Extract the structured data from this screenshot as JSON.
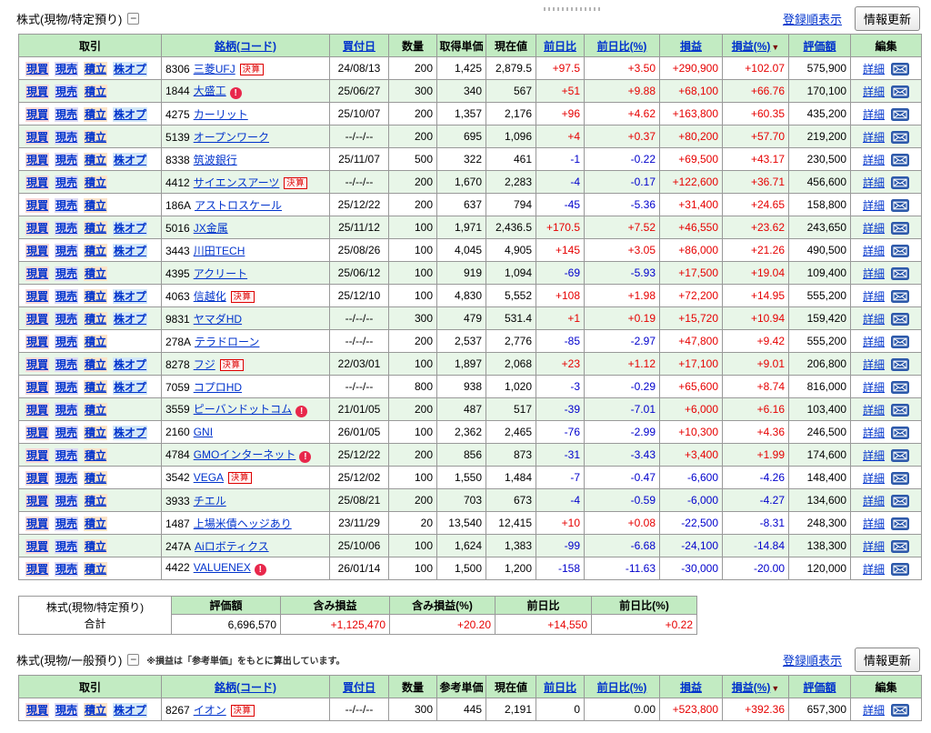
{
  "colors": {
    "positive": "#e60000",
    "negative": "#0000cc",
    "link": "#0033cc",
    "header_bg": "#c2ebc2",
    "stripe": "#e8f6e8",
    "border": "#999999",
    "outer": "#777777",
    "badge_red": "#dd0000",
    "alert_red": "#e8274b",
    "mail_blue": "#2d59aa",
    "genbai_bg": "#f9d7d7",
    "genuri_bg": "#dedaf3",
    "tsumitate_bg": "#fbe4ca",
    "kabuop_bg": "#d2e7f7"
  },
  "labels": {
    "kessan": "決算",
    "detail": "詳細",
    "alert_mark": "!",
    "collapse": "−",
    "sort_arrow": "▼"
  },
  "trade_links": {
    "genbai": "現買",
    "genuri": "現売",
    "tsumitate": "積立",
    "kabuop": "株オプ"
  },
  "section1": {
    "title": "株式(現物/特定預り)",
    "sort_link": "登録順表示",
    "refresh_button": "情報更新",
    "table": {
      "headers": [
        "取引",
        "銘柄(コード)",
        "買付日",
        "数量",
        "取得単価",
        "現在値",
        "前日比",
        "前日比(%)",
        "損益",
        "損益(%)",
        "評価額",
        "編集"
      ],
      "rows": [
        {
          "links": [
            "genbai",
            "genuri",
            "tsumitate",
            "kabuop"
          ],
          "code": "8306",
          "name": "三菱UFJ",
          "badge": true,
          "alert": false,
          "date": "24/08/13",
          "qty": "200",
          "unit": "1,425",
          "price": "2,879.5",
          "chg": "+97.5",
          "chg_pct": "+3.50",
          "pl": "+290,900",
          "pl_pct": "+102.07",
          "val": "575,900"
        },
        {
          "links": [
            "genbai",
            "genuri",
            "tsumitate"
          ],
          "code": "1844",
          "name": "大盛工",
          "badge": false,
          "alert": true,
          "date": "25/06/27",
          "qty": "300",
          "unit": "340",
          "price": "567",
          "chg": "+51",
          "chg_pct": "+9.88",
          "pl": "+68,100",
          "pl_pct": "+66.76",
          "val": "170,100"
        },
        {
          "links": [
            "genbai",
            "genuri",
            "tsumitate",
            "kabuop"
          ],
          "code": "4275",
          "name": "カーリット",
          "badge": false,
          "alert": false,
          "date": "25/10/07",
          "qty": "200",
          "unit": "1,357",
          "price": "2,176",
          "chg": "+96",
          "chg_pct": "+4.62",
          "pl": "+163,800",
          "pl_pct": "+60.35",
          "val": "435,200"
        },
        {
          "links": [
            "genbai",
            "genuri",
            "tsumitate"
          ],
          "code": "5139",
          "name": "オープンワーク",
          "badge": false,
          "alert": false,
          "date": "--/--/--",
          "qty": "200",
          "unit": "695",
          "price": "1,096",
          "chg": "+4",
          "chg_pct": "+0.37",
          "pl": "+80,200",
          "pl_pct": "+57.70",
          "val": "219,200"
        },
        {
          "links": [
            "genbai",
            "genuri",
            "tsumitate",
            "kabuop"
          ],
          "code": "8338",
          "name": "筑波銀行",
          "badge": false,
          "alert": false,
          "date": "25/11/07",
          "qty": "500",
          "unit": "322",
          "price": "461",
          "chg": "-1",
          "chg_pct": "-0.22",
          "pl": "+69,500",
          "pl_pct": "+43.17",
          "val": "230,500"
        },
        {
          "links": [
            "genbai",
            "genuri",
            "tsumitate"
          ],
          "code": "4412",
          "name": "サイエンスアーツ",
          "badge": true,
          "alert": false,
          "date": "--/--/--",
          "qty": "200",
          "unit": "1,670",
          "price": "2,283",
          "chg": "-4",
          "chg_pct": "-0.17",
          "pl": "+122,600",
          "pl_pct": "+36.71",
          "val": "456,600"
        },
        {
          "links": [
            "genbai",
            "genuri",
            "tsumitate"
          ],
          "code": "186A",
          "name": "アストロスケール",
          "badge": false,
          "alert": false,
          "date": "25/12/22",
          "qty": "200",
          "unit": "637",
          "price": "794",
          "chg": "-45",
          "chg_pct": "-5.36",
          "pl": "+31,400",
          "pl_pct": "+24.65",
          "val": "158,800"
        },
        {
          "links": [
            "genbai",
            "genuri",
            "tsumitate",
            "kabuop"
          ],
          "code": "5016",
          "name": "JX金属",
          "badge": false,
          "alert": false,
          "date": "25/11/12",
          "qty": "100",
          "unit": "1,971",
          "price": "2,436.5",
          "chg": "+170.5",
          "chg_pct": "+7.52",
          "pl": "+46,550",
          "pl_pct": "+23.62",
          "val": "243,650"
        },
        {
          "links": [
            "genbai",
            "genuri",
            "tsumitate",
            "kabuop"
          ],
          "code": "3443",
          "name": "川田TECH",
          "badge": false,
          "alert": false,
          "date": "25/08/26",
          "qty": "100",
          "unit": "4,045",
          "price": "4,905",
          "chg": "+145",
          "chg_pct": "+3.05",
          "pl": "+86,000",
          "pl_pct": "+21.26",
          "val": "490,500"
        },
        {
          "links": [
            "genbai",
            "genuri",
            "tsumitate"
          ],
          "code": "4395",
          "name": "アクリート",
          "badge": false,
          "alert": false,
          "date": "25/06/12",
          "qty": "100",
          "unit": "919",
          "price": "1,094",
          "chg": "-69",
          "chg_pct": "-5.93",
          "pl": "+17,500",
          "pl_pct": "+19.04",
          "val": "109,400"
        },
        {
          "links": [
            "genbai",
            "genuri",
            "tsumitate",
            "kabuop"
          ],
          "code": "4063",
          "name": "信越化",
          "badge": true,
          "alert": false,
          "date": "25/12/10",
          "qty": "100",
          "unit": "4,830",
          "price": "5,552",
          "chg": "+108",
          "chg_pct": "+1.98",
          "pl": "+72,200",
          "pl_pct": "+14.95",
          "val": "555,200"
        },
        {
          "links": [
            "genbai",
            "genuri",
            "tsumitate",
            "kabuop"
          ],
          "code": "9831",
          "name": "ヤマダHD",
          "badge": false,
          "alert": false,
          "date": "--/--/--",
          "qty": "300",
          "unit": "479",
          "price": "531.4",
          "chg": "+1",
          "chg_pct": "+0.19",
          "pl": "+15,720",
          "pl_pct": "+10.94",
          "val": "159,420"
        },
        {
          "links": [
            "genbai",
            "genuri",
            "tsumitate"
          ],
          "code": "278A",
          "name": "テラドローン",
          "badge": false,
          "alert": false,
          "date": "--/--/--",
          "qty": "200",
          "unit": "2,537",
          "price": "2,776",
          "chg": "-85",
          "chg_pct": "-2.97",
          "pl": "+47,800",
          "pl_pct": "+9.42",
          "val": "555,200"
        },
        {
          "links": [
            "genbai",
            "genuri",
            "tsumitate",
            "kabuop"
          ],
          "code": "8278",
          "name": "フジ",
          "badge": true,
          "alert": false,
          "date": "22/03/01",
          "qty": "100",
          "unit": "1,897",
          "price": "2,068",
          "chg": "+23",
          "chg_pct": "+1.12",
          "pl": "+17,100",
          "pl_pct": "+9.01",
          "val": "206,800"
        },
        {
          "links": [
            "genbai",
            "genuri",
            "tsumitate",
            "kabuop"
          ],
          "code": "7059",
          "name": "コプロHD",
          "badge": false,
          "alert": false,
          "date": "--/--/--",
          "qty": "800",
          "unit": "938",
          "price": "1,020",
          "chg": "-3",
          "chg_pct": "-0.29",
          "pl": "+65,600",
          "pl_pct": "+8.74",
          "val": "816,000"
        },
        {
          "links": [
            "genbai",
            "genuri",
            "tsumitate"
          ],
          "code": "3559",
          "name": "ピーバンドットコム",
          "badge": false,
          "alert": true,
          "date": "21/01/05",
          "qty": "200",
          "unit": "487",
          "price": "517",
          "chg": "-39",
          "chg_pct": "-7.01",
          "pl": "+6,000",
          "pl_pct": "+6.16",
          "val": "103,400"
        },
        {
          "links": [
            "genbai",
            "genuri",
            "tsumitate",
            "kabuop"
          ],
          "code": "2160",
          "name": "GNI",
          "badge": false,
          "alert": false,
          "date": "26/01/05",
          "qty": "100",
          "unit": "2,362",
          "price": "2,465",
          "chg": "-76",
          "chg_pct": "-2.99",
          "pl": "+10,300",
          "pl_pct": "+4.36",
          "val": "246,500"
        },
        {
          "links": [
            "genbai",
            "genuri",
            "tsumitate"
          ],
          "code": "4784",
          "name": "GMOインターネット",
          "badge": false,
          "alert": true,
          "date": "25/12/22",
          "qty": "200",
          "unit": "856",
          "price": "873",
          "chg": "-31",
          "chg_pct": "-3.43",
          "pl": "+3,400",
          "pl_pct": "+1.99",
          "val": "174,600"
        },
        {
          "links": [
            "genbai",
            "genuri",
            "tsumitate"
          ],
          "code": "3542",
          "name": "VEGA",
          "badge": true,
          "alert": false,
          "date": "25/12/02",
          "qty": "100",
          "unit": "1,550",
          "price": "1,484",
          "chg": "-7",
          "chg_pct": "-0.47",
          "pl": "-6,600",
          "pl_pct": "-4.26",
          "val": "148,400"
        },
        {
          "links": [
            "genbai",
            "genuri",
            "tsumitate"
          ],
          "code": "3933",
          "name": "チエル",
          "badge": false,
          "alert": false,
          "date": "25/08/21",
          "qty": "200",
          "unit": "703",
          "price": "673",
          "chg": "-4",
          "chg_pct": "-0.59",
          "pl": "-6,000",
          "pl_pct": "-4.27",
          "val": "134,600"
        },
        {
          "links": [
            "genbai",
            "genuri",
            "tsumitate"
          ],
          "code": "1487",
          "name": "上場米債ヘッジあり",
          "badge": false,
          "alert": false,
          "date": "23/11/29",
          "qty": "20",
          "unit": "13,540",
          "price": "12,415",
          "chg": "+10",
          "chg_pct": "+0.08",
          "pl": "-22,500",
          "pl_pct": "-8.31",
          "val": "248,300"
        },
        {
          "links": [
            "genbai",
            "genuri",
            "tsumitate"
          ],
          "code": "247A",
          "name": "Aiロボティクス",
          "badge": false,
          "alert": false,
          "date": "25/10/06",
          "qty": "100",
          "unit": "1,624",
          "price": "1,383",
          "chg": "-99",
          "chg_pct": "-6.68",
          "pl": "-24,100",
          "pl_pct": "-14.84",
          "val": "138,300"
        },
        {
          "links": [
            "genbai",
            "genuri",
            "tsumitate"
          ],
          "code": "4422",
          "name": "VALUENEX",
          "badge": false,
          "alert": true,
          "date": "26/01/14",
          "qty": "100",
          "unit": "1,500",
          "price": "1,200",
          "chg": "-158",
          "chg_pct": "-11.63",
          "pl": "-30,000",
          "pl_pct": "-20.00",
          "val": "120,000"
        }
      ]
    },
    "summary": {
      "label_line1": "株式(現物/特定預り)",
      "label_line2": "合計",
      "headers": [
        "評価額",
        "含み損益",
        "含み損益(%)",
        "前日比",
        "前日比(%)"
      ],
      "values": [
        "6,696,570",
        "+1,125,470",
        "+20.20",
        "+14,550",
        "+0.22"
      ]
    }
  },
  "section2": {
    "title": "株式(現物/一般預り)",
    "note": "※損益は「参考単価」をもとに算出しています。",
    "sort_link": "登録順表示",
    "refresh_button": "情報更新",
    "table": {
      "headers": [
        "取引",
        "銘柄(コード)",
        "買付日",
        "数量",
        "参考単価",
        "現在値",
        "前日比",
        "前日比(%)",
        "損益",
        "損益(%)",
        "評価額",
        "編集"
      ],
      "rows": [
        {
          "links": [
            "genbai",
            "genuri",
            "tsumitate",
            "kabuop"
          ],
          "code": "8267",
          "name": "イオン",
          "badge": true,
          "alert": false,
          "date": "--/--/--",
          "qty": "300",
          "unit": "445",
          "price": "2,191",
          "chg": "0",
          "chg_pct": "0.00",
          "pl": "+523,800",
          "pl_pct": "+392.36",
          "val": "657,300"
        }
      ]
    }
  }
}
